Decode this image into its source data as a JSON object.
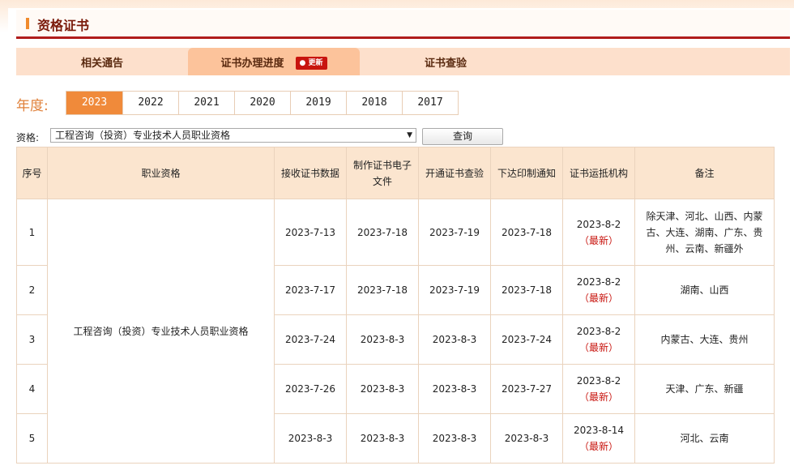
{
  "title": "资格证书",
  "tabs": [
    {
      "label": "相关通告"
    },
    {
      "label": "证书办理进度",
      "badge": "更新",
      "active": true
    },
    {
      "label": "证书查验"
    }
  ],
  "year_label": "年度:",
  "years": [
    "2023",
    "2022",
    "2021",
    "2020",
    "2019",
    "2018",
    "2017"
  ],
  "selected_year": "2023",
  "filter": {
    "label": "资格:",
    "value": "工程咨询（投资）专业技术人员职业资格",
    "button": "查询"
  },
  "colors": {
    "accent": "#f08a3a",
    "header_red": "#b01c1c",
    "new_red": "#c8140e"
  },
  "table": {
    "headers": [
      "序号",
      "职业资格",
      "接收证书数据",
      "制作证书电子文件",
      "开通证书查验",
      "下达印制通知",
      "证书运抵机构",
      "备注"
    ],
    "qualification": "工程咨询（投资）专业技术人员职业资格",
    "latest_label": "（最新）",
    "rows": [
      {
        "no": "1",
        "c1": "2023-7-13",
        "c2": "2023-7-18",
        "c3": "2023-7-19",
        "c4": "2023-7-18",
        "c5": "2023-8-2",
        "note": "除天津、河北、山西、内蒙古、大连、湖南、广东、贵州、云南、新疆外"
      },
      {
        "no": "2",
        "c1": "2023-7-17",
        "c2": "2023-7-18",
        "c3": "2023-7-19",
        "c4": "2023-7-18",
        "c5": "2023-8-2",
        "note": "湖南、山西"
      },
      {
        "no": "3",
        "c1": "2023-7-24",
        "c2": "2023-8-3",
        "c3": "2023-8-3",
        "c4": "2023-7-24",
        "c5": "2023-8-2",
        "note": "内蒙古、大连、贵州"
      },
      {
        "no": "4",
        "c1": "2023-7-26",
        "c2": "2023-8-3",
        "c3": "2023-8-3",
        "c4": "2023-7-27",
        "c5": "2023-8-2",
        "note": "天津、广东、新疆"
      },
      {
        "no": "5",
        "c1": "2023-8-3",
        "c2": "2023-8-3",
        "c3": "2023-8-3",
        "c4": "2023-8-3",
        "c5": "2023-8-14",
        "note": "河北、云南"
      }
    ]
  }
}
